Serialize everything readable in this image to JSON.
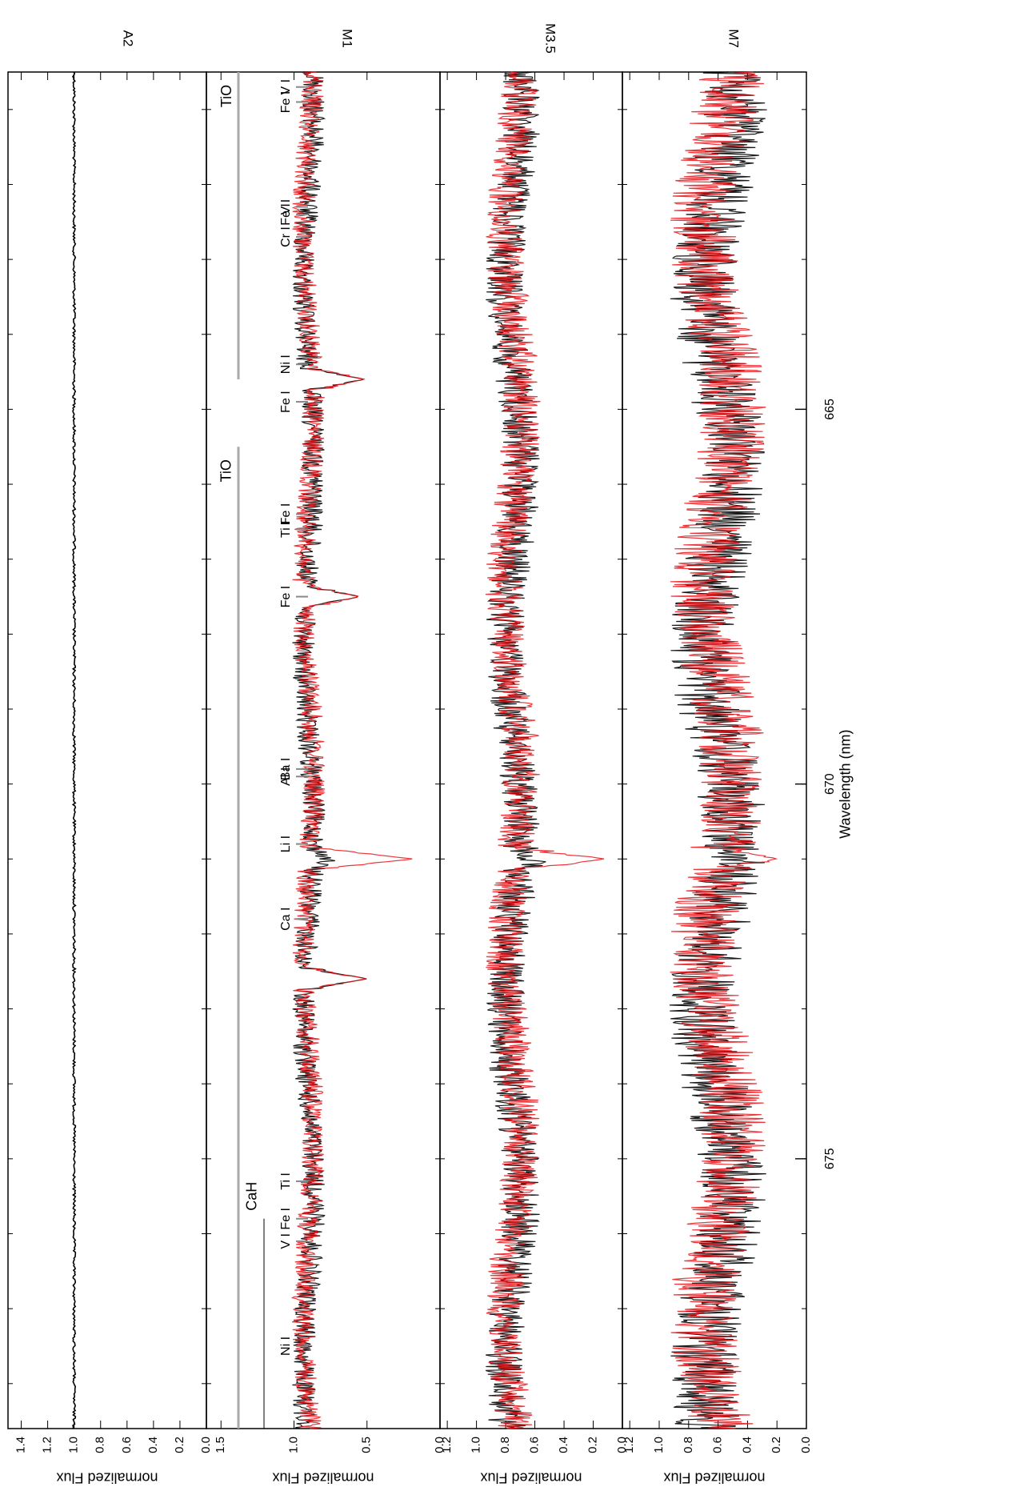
{
  "figure": {
    "xlabel": "Wavelength (nm)",
    "ylabel": "normalized Flux",
    "orientation": "rotated 90 degrees clockwise (wavelength increases from top to bottom)"
  },
  "chart_data": [
    {
      "type": "line",
      "panel_label": "A2",
      "ylabel": "normalized Flux",
      "ylim": [
        0.0,
        1.5
      ],
      "yticks": [
        "0.0",
        "0.2",
        "0.4",
        "0.6",
        "0.8",
        "1.0",
        "1.2",
        "1.4"
      ],
      "xlim": [
        660.5,
        678.6
      ],
      "xticks": [],
      "series": [
        {
          "color": "#000000",
          "values_note": "flat spectrum at ~1.00 across the whole range"
        }
      ],
      "flat_level": 1.0,
      "annotations": []
    },
    {
      "type": "line",
      "panel_label": "M1",
      "ylabel": "normalized Flux",
      "ylim": [
        0.0,
        1.6
      ],
      "yticks": [
        "0.0",
        "0.5",
        "1.0",
        "1.5"
      ],
      "xlim": [
        660.5,
        678.6
      ],
      "xticks": [],
      "series": [
        {
          "color": "#000000"
        },
        {
          "color": "#e8141a"
        }
      ],
      "absorption_dips": [
        {
          "x": 664.6,
          "min": 0.52
        },
        {
          "x": 667.5,
          "min": 0.55
        },
        {
          "x": 671.0,
          "min": 0.18
        },
        {
          "x": 672.6,
          "min": 0.5
        }
      ],
      "bands": [
        {
          "label": "TiO",
          "x0": 660.5,
          "x1": 664.6
        },
        {
          "label": "TiO",
          "x0": 665.5,
          "x1": 678.6
        },
        {
          "label": "CaH",
          "x0": 675.8,
          "x1": 678.6
        }
      ],
      "line_markers": [
        {
          "label": "V I",
          "x": 660.7
        },
        {
          "label": "Fe I",
          "x": 660.9
        },
        {
          "label": "V I",
          "x": 662.3
        },
        {
          "label": "Fe I",
          "x": 662.4
        },
        {
          "label": "Cr I",
          "x": 662.7
        },
        {
          "label": "Ni I",
          "x": 664.4
        },
        {
          "label": "Fe I",
          "x": 664.9
        },
        {
          "label": "Fe I",
          "x": 666.4
        },
        {
          "label": "Ti I",
          "x": 666.6
        },
        {
          "label": "Fe I",
          "x": 667.5
        },
        {
          "label": "Ba I",
          "x": 669.8
        },
        {
          "label": "Al I",
          "x": 669.9
        },
        {
          "label": "Li I",
          "x": 670.8
        },
        {
          "label": "Ca I",
          "x": 671.8
        },
        {
          "label": "Ti I",
          "x": 675.3
        },
        {
          "label": "Fe I",
          "x": 675.8
        },
        {
          "label": "V I",
          "x": 676.1
        },
        {
          "label": "Ni I",
          "x": 677.5
        }
      ]
    },
    {
      "type": "line",
      "panel_label": "M3.5",
      "ylabel": "normalized Flux",
      "ylim": [
        0.0,
        1.25
      ],
      "yticks": [
        "0.0",
        "0.2",
        "0.4",
        "0.6",
        "0.8",
        "1.0",
        "1.2"
      ],
      "xlim": [
        660.5,
        678.6
      ],
      "xticks": [],
      "series": [
        {
          "color": "#000000"
        },
        {
          "color": "#e8141a"
        }
      ],
      "absorption_dips": [
        {
          "x": 671.0,
          "min": 0.12
        }
      ],
      "annotations": []
    },
    {
      "type": "line",
      "panel_label": "M7",
      "ylabel": "normalized Flux",
      "ylim": [
        0.0,
        1.25
      ],
      "yticks": [
        "0.0",
        "0.2",
        "0.4",
        "0.6",
        "0.8",
        "1.0",
        "1.2"
      ],
      "xlim": [
        660.5,
        678.6
      ],
      "xticks": [
        "665",
        "670",
        "675"
      ],
      "xticks_values": [
        665,
        670,
        675
      ],
      "xlabel": "Wavelength (nm)",
      "series": [
        {
          "color": "#000000"
        },
        {
          "color": "#e8141a"
        }
      ],
      "absorption_dips": [
        {
          "x": 671.0,
          "min": 0.2
        }
      ],
      "annotations": []
    }
  ]
}
